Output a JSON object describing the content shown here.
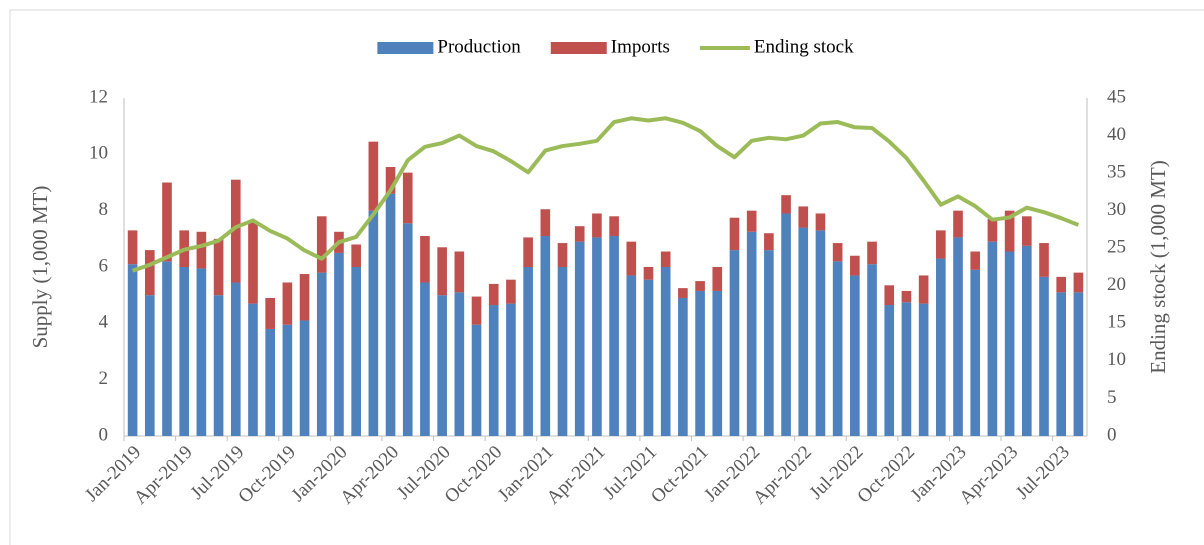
{
  "chart_data": {
    "type": "bar",
    "stacked": true,
    "y_label": "Supply (1,000 MT)",
    "y2_label": "Ending stock (1,000 MT)",
    "categories": [
      "Jan-2019",
      null,
      null,
      "Apr-2019",
      null,
      null,
      "Jul-2019",
      null,
      null,
      "Oct-2019",
      null,
      null,
      "Jan-2020",
      null,
      null,
      "Apr-2020",
      null,
      null,
      "Jul-2020",
      null,
      null,
      "Oct-2020",
      null,
      null,
      "Jan-2021",
      null,
      null,
      "Apr-2021",
      null,
      null,
      "Jul-2021",
      null,
      null,
      "Oct-2021",
      null,
      null,
      "Jan-2022",
      null,
      null,
      "Apr-2022",
      null,
      null,
      "Jul-2022",
      null,
      null,
      "Oct-2022",
      null,
      null,
      "Jan-2023",
      null,
      null,
      "Apr-2023",
      null,
      null,
      "Jul-2023",
      null
    ],
    "series": [
      {
        "name": "Production",
        "color": "#4f81bd",
        "values": [
          6.1,
          5.0,
          6.2,
          6.0,
          5.95,
          5.0,
          5.45,
          4.7,
          3.8,
          3.95,
          4.1,
          5.8,
          6.5,
          6.0,
          8.0,
          8.6,
          7.55,
          5.45,
          5.0,
          5.1,
          3.95,
          4.65,
          4.7,
          6.0,
          7.1,
          6.0,
          6.9,
          7.05,
          7.1,
          5.7,
          5.55,
          6.0,
          4.9,
          5.15,
          5.15,
          6.6,
          7.25,
          6.6,
          7.9,
          7.4,
          7.3,
          6.2,
          5.7,
          6.1,
          4.65,
          4.75,
          4.7,
          6.3,
          7.05,
          5.9,
          6.9,
          6.55,
          6.75,
          5.65,
          5.1,
          5.1
        ]
      },
      {
        "name": "Imports",
        "color": "#c0504d",
        "values": [
          1.2,
          1.6,
          2.8,
          1.3,
          1.3,
          2.0,
          3.65,
          2.9,
          1.1,
          1.5,
          1.65,
          2.0,
          0.75,
          0.8,
          2.45,
          0.95,
          1.8,
          1.65,
          1.7,
          1.45,
          1.0,
          0.75,
          0.85,
          1.05,
          0.95,
          0.85,
          0.55,
          0.85,
          0.7,
          1.2,
          0.45,
          0.55,
          0.35,
          0.35,
          0.85,
          1.15,
          0.75,
          0.6,
          0.65,
          0.75,
          0.6,
          0.65,
          0.7,
          0.8,
          0.7,
          0.4,
          1.0,
          1.0,
          0.95,
          0.65,
          0.8,
          1.45,
          1.05,
          1.2,
          0.55,
          0.7
        ]
      },
      {
        "name": "Ending stock",
        "color": "#9bbb59",
        "type": "line",
        "axis": "y2",
        "values": [
          22,
          22.8,
          23.8,
          24.8,
          25.3,
          26,
          27.8,
          28.7,
          27.3,
          26.3,
          24.7,
          23.6,
          25.8,
          26.5,
          29.5,
          32.7,
          36.7,
          38.5,
          39,
          40,
          38.6,
          37.9,
          36.6,
          35.1,
          38,
          38.6,
          38.9,
          39.3,
          41.8,
          42.3,
          42,
          42.3,
          41.7,
          40.6,
          38.6,
          37.1,
          39.3,
          39.7,
          39.5,
          40,
          41.6,
          41.8,
          41.1,
          41,
          39.2,
          37,
          34,
          30.8,
          31.9,
          30.6,
          28.8,
          29.1,
          30.4,
          29.8,
          29,
          28.1
        ]
      }
    ],
    "ylim": [
      0,
      12
    ],
    "yticks": [
      0,
      2,
      4,
      6,
      8,
      10,
      12
    ],
    "y2lim": [
      0,
      45
    ],
    "y2ticks": [
      0,
      5,
      10,
      15,
      20,
      25,
      30,
      35,
      40,
      45
    ],
    "legend": "top"
  }
}
